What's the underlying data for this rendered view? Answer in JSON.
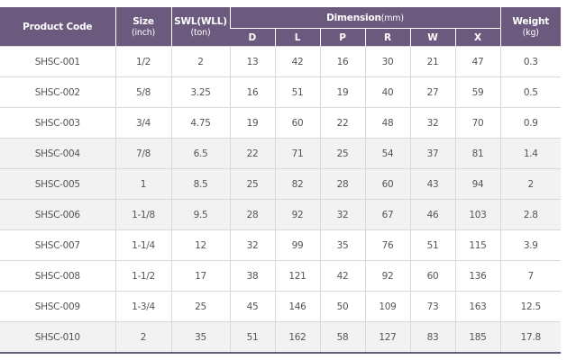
{
  "headers": {
    "product_code": "Product Code",
    "size": "Size",
    "size_unit": "(inch)",
    "swl": "SWL(WLL)",
    "swl_unit": "(ton)",
    "dimension": "Dimension",
    "dimension_unit": "(mm)",
    "weight": "Weight",
    "weight_unit": "(kg)",
    "dim_cols": [
      "D",
      "L",
      "P",
      "R",
      "W",
      "X"
    ]
  },
  "rows": [
    {
      "code": "SHSC-001",
      "size": "1/2",
      "swl": "2",
      "d": "13",
      "l": "42",
      "p": "16",
      "r": "30",
      "w": "21",
      "x": "47",
      "weight": "0.3"
    },
    {
      "code": "SHSC-002",
      "size": "5/8",
      "swl": "3.25",
      "d": "16",
      "l": "51",
      "p": "19",
      "r": "40",
      "w": "27",
      "x": "59",
      "weight": "0.5"
    },
    {
      "code": "SHSC-003",
      "size": "3/4",
      "swl": "4.75",
      "d": "19",
      "l": "60",
      "p": "22",
      "r": "48",
      "w": "32",
      "x": "70",
      "weight": "0.9"
    },
    {
      "code": "SHSC-004",
      "size": "7/8",
      "swl": "6.5",
      "d": "22",
      "l": "71",
      "p": "25",
      "r": "54",
      "w": "37",
      "x": "81",
      "weight": "1.4"
    },
    {
      "code": "SHSC-005",
      "size": "1",
      "swl": "8.5",
      "d": "25",
      "l": "82",
      "p": "28",
      "r": "60",
      "w": "43",
      "x": "94",
      "weight": "2"
    },
    {
      "code": "SHSC-006",
      "size": "1-1/8",
      "swl": "9.5",
      "d": "28",
      "l": "92",
      "p": "32",
      "r": "67",
      "w": "46",
      "x": "103",
      "weight": "2.8"
    },
    {
      "code": "SHSC-007",
      "size": "1-1/4",
      "swl": "12",
      "d": "32",
      "l": "99",
      "p": "35",
      "r": "76",
      "w": "51",
      "x": "115",
      "weight": "3.9"
    },
    {
      "code": "SHSC-008",
      "size": "1-1/2",
      "swl": "17",
      "d": "38",
      "l": "121",
      "p": "42",
      "r": "92",
      "w": "60",
      "x": "136",
      "weight": "7"
    },
    {
      "code": "SHSC-009",
      "size": "1-3/4",
      "swl": "25",
      "d": "45",
      "l": "146",
      "p": "50",
      "r": "109",
      "w": "73",
      "x": "163",
      "weight": "12.5"
    },
    {
      "code": "SHSC-010",
      "size": "2",
      "swl": "35",
      "d": "51",
      "l": "162",
      "p": "58",
      "r": "127",
      "w": "83",
      "x": "185",
      "weight": "17.8"
    }
  ],
  "colors": {
    "header_bg": "#6b5a7e",
    "shade_bg": "#f2f2f2"
  }
}
